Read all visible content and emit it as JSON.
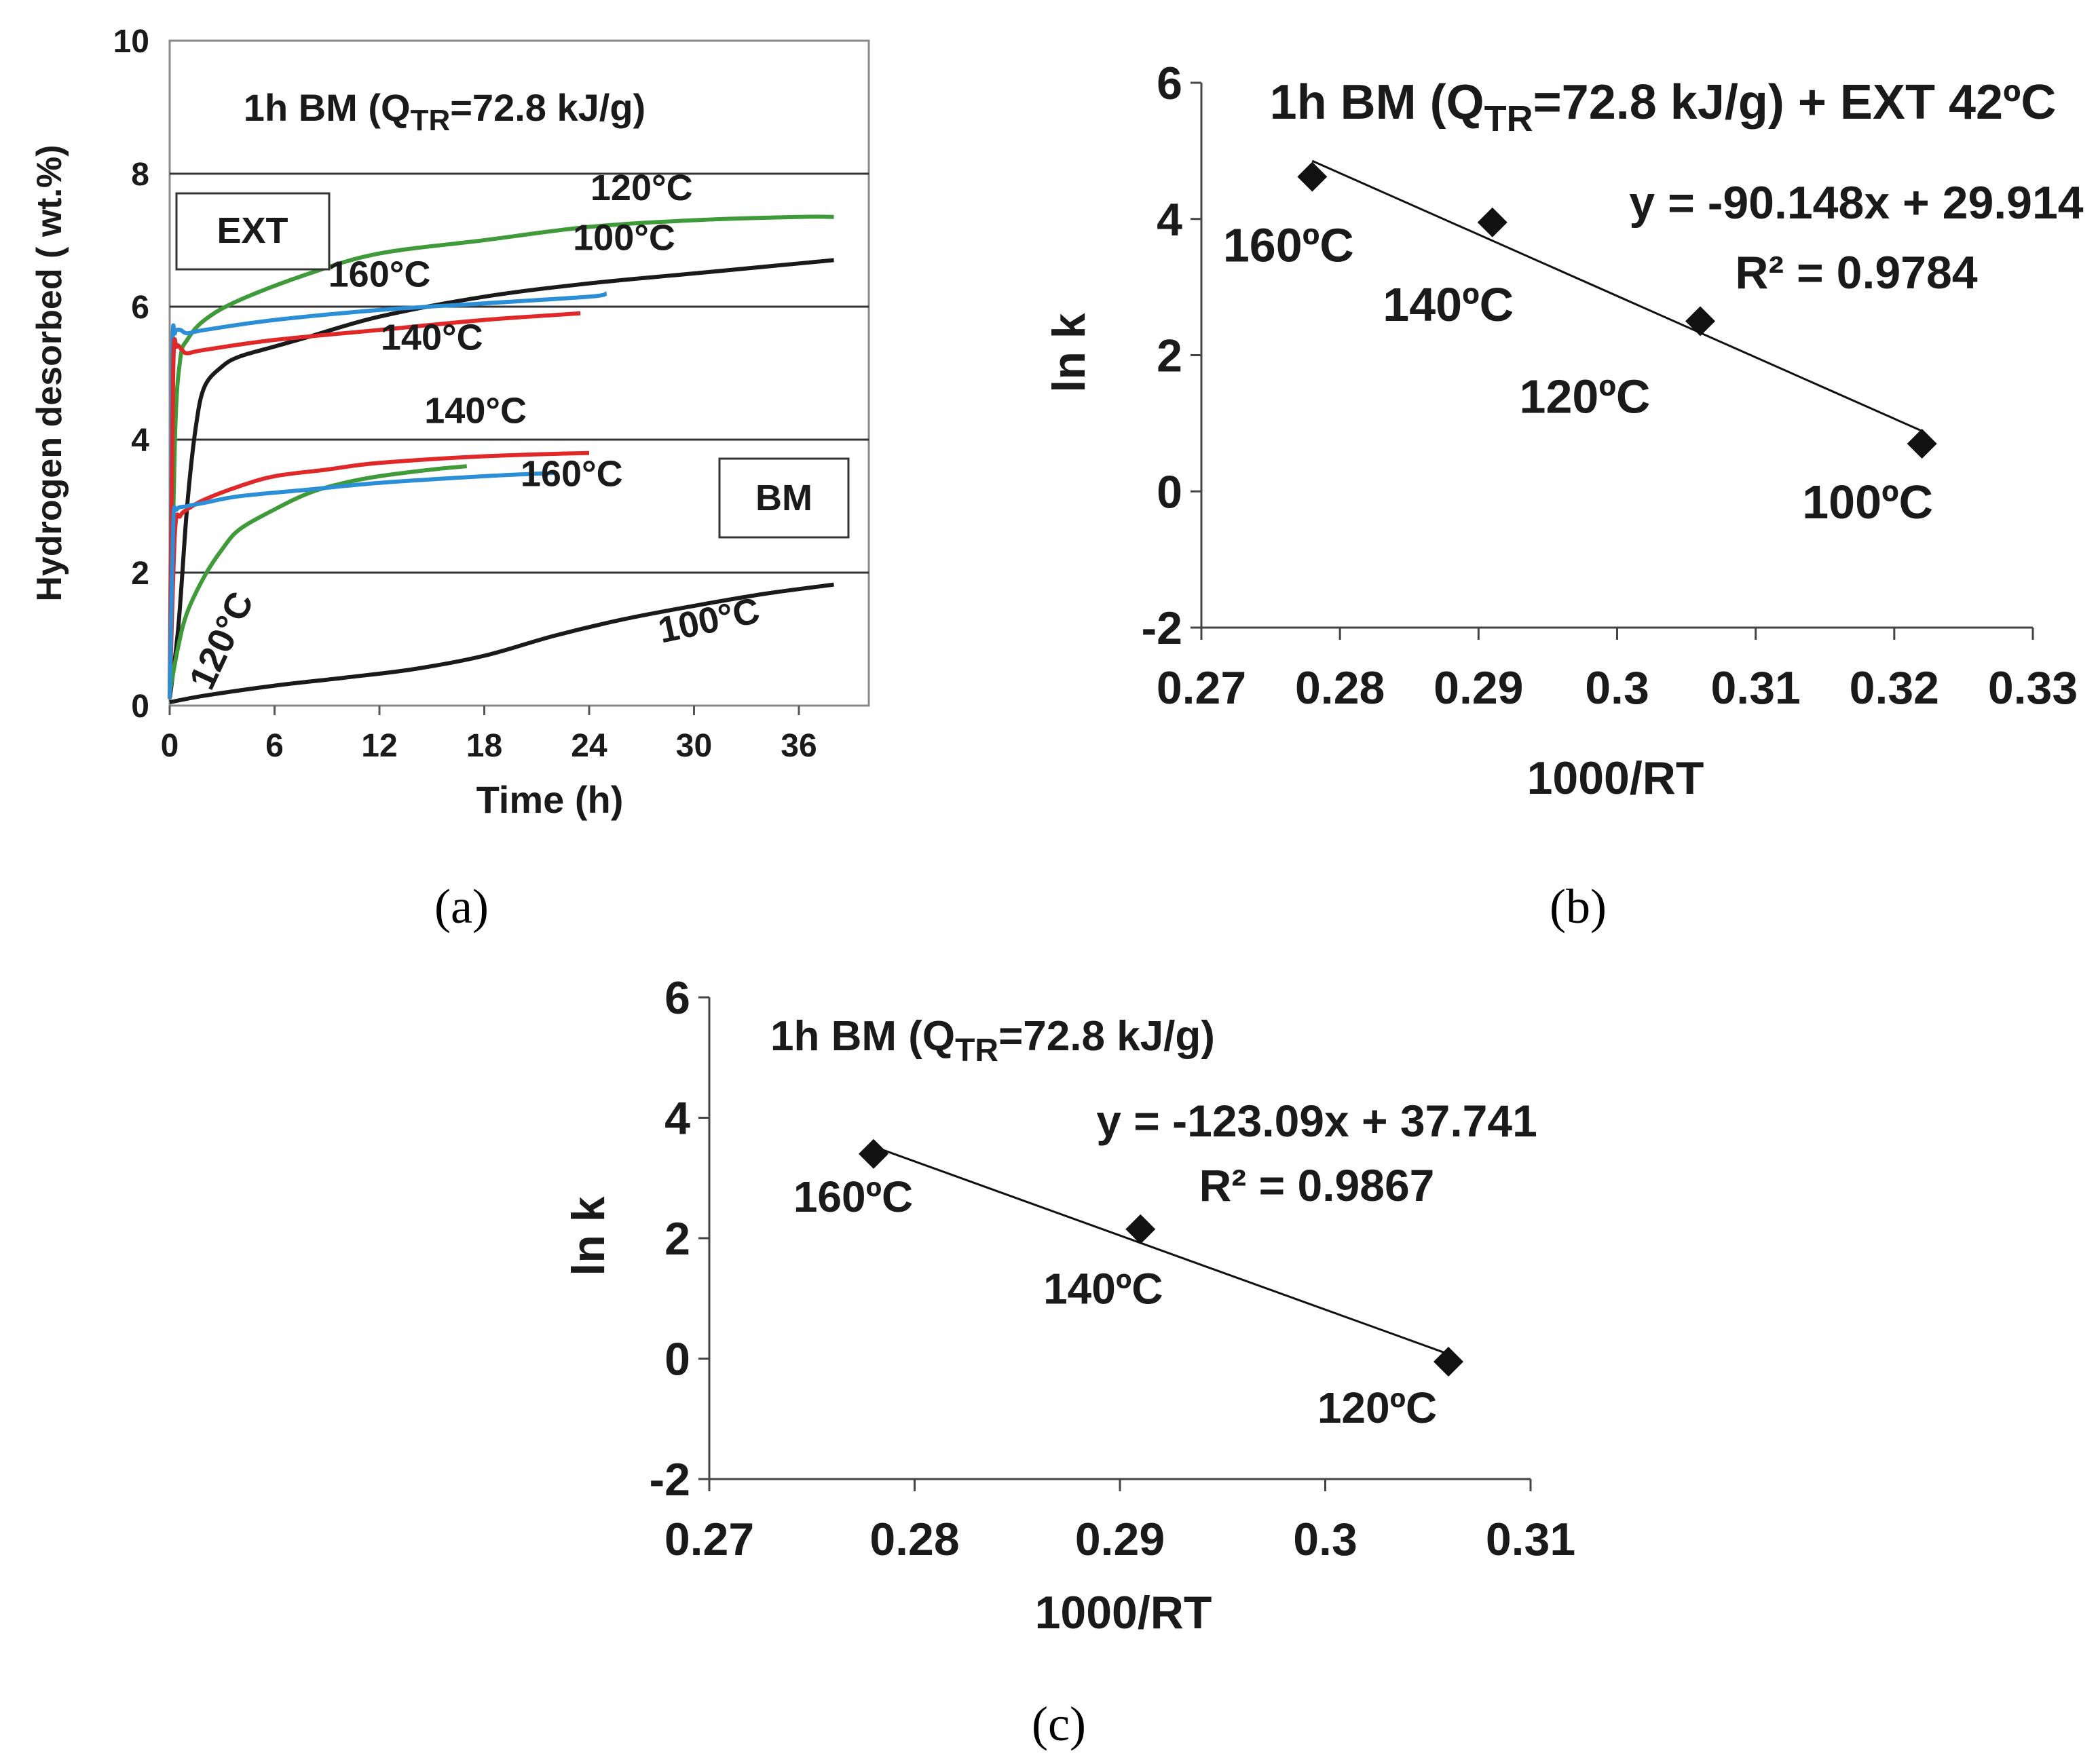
{
  "chart_data": [
    {
      "id": "a",
      "type": "line",
      "panel_label": "(a)",
      "title_parts": [
        "1h BM (Q",
        "TR",
        "=72.8 kJ/g)"
      ],
      "xlabel": "Time  (h)",
      "ylabel": "Hydrogen desorbed ( wt.%)",
      "xlim": [
        0,
        40
      ],
      "ylim": [
        0,
        10
      ],
      "xticks": [
        0,
        6,
        12,
        18,
        24,
        30,
        36
      ],
      "yticks": [
        0,
        2,
        4,
        6,
        8,
        10
      ],
      "grid": "horizontal",
      "box_labels": [
        "EXT",
        "BM"
      ],
      "series": [
        {
          "name": "EXT 120°C",
          "group": "EXT",
          "temp": "120°C",
          "color": "#3f9b3a",
          "x": [
            0,
            0.3,
            0.6,
            1,
            2,
            4,
            8,
            12,
            18,
            24,
            30,
            36,
            38
          ],
          "y": [
            0.1,
            4.0,
            5.2,
            5.5,
            5.8,
            6.1,
            6.5,
            6.8,
            7.0,
            7.2,
            7.3,
            7.35,
            7.35
          ]
        },
        {
          "name": "EXT 100°C",
          "group": "EXT",
          "temp": "100°C",
          "color": "#1a1a1a",
          "x": [
            0,
            0.5,
            1,
            1.5,
            2,
            3,
            4,
            6,
            8,
            12,
            18,
            24,
            30,
            36,
            38
          ],
          "y": [
            0.1,
            1.2,
            3.0,
            4.2,
            4.8,
            5.1,
            5.25,
            5.4,
            5.55,
            5.85,
            6.15,
            6.35,
            6.5,
            6.65,
            6.7
          ]
        },
        {
          "name": "EXT 160°C",
          "group": "EXT",
          "temp": "160°C",
          "color": "#2a8fd6",
          "x": [
            0,
            0.15,
            0.3,
            0.6,
            1,
            2,
            6,
            12,
            18,
            24,
            25
          ],
          "y": [
            0.1,
            5.2,
            5.6,
            5.65,
            5.6,
            5.65,
            5.8,
            5.95,
            6.05,
            6.15,
            6.2
          ]
        },
        {
          "name": "EXT 140°C",
          "group": "EXT",
          "temp": "140°C",
          "color": "#e02828",
          "x": [
            0,
            0.2,
            0.4,
            0.7,
            1,
            2,
            6,
            12,
            18,
            23.5
          ],
          "y": [
            0.1,
            5.0,
            5.4,
            5.35,
            5.3,
            5.35,
            5.5,
            5.65,
            5.8,
            5.9
          ]
        },
        {
          "name": "BM 140°C",
          "group": "BM",
          "temp": "140°C",
          "color": "#e02828",
          "x": [
            0,
            0.3,
            0.6,
            1,
            2,
            4,
            6,
            9,
            12,
            18,
            24
          ],
          "y": [
            0.1,
            2.6,
            2.85,
            2.95,
            3.1,
            3.3,
            3.45,
            3.55,
            3.65,
            3.75,
            3.8
          ]
        },
        {
          "name": "BM 120°C",
          "group": "BM",
          "temp": "120°C",
          "color": "#3f9b3a",
          "x": [
            0,
            0.5,
            1,
            2,
            3,
            4,
            6,
            8,
            10,
            12,
            15,
            17
          ],
          "y": [
            0.2,
            0.9,
            1.4,
            1.95,
            2.35,
            2.65,
            2.95,
            3.2,
            3.35,
            3.45,
            3.55,
            3.6
          ]
        },
        {
          "name": "BM 160°C",
          "group": "BM",
          "temp": "160°C",
          "color": "#2a8fd6",
          "x": [
            0,
            0.2,
            0.4,
            1,
            2,
            4,
            8,
            12,
            18,
            22
          ],
          "y": [
            0.1,
            2.7,
            2.95,
            3.0,
            3.05,
            3.15,
            3.25,
            3.35,
            3.45,
            3.5
          ]
        },
        {
          "name": "BM 100°C",
          "group": "BM",
          "temp": "100°C",
          "color": "#1a1a1a",
          "x": [
            0,
            2,
            6,
            10,
            14,
            18,
            22,
            26,
            30,
            34,
            38
          ],
          "y": [
            0.05,
            0.15,
            0.3,
            0.42,
            0.55,
            0.75,
            1.05,
            1.3,
            1.5,
            1.68,
            1.82
          ]
        }
      ],
      "curve_labels": [
        {
          "text": "120°C",
          "x": 27,
          "y": 7.6
        },
        {
          "text": "100°C",
          "x": 26,
          "y": 6.85
        },
        {
          "text": "160°C",
          "x": 12,
          "y": 6.3
        },
        {
          "text": "140°C",
          "x": 15,
          "y": 5.35
        },
        {
          "text": "140°C",
          "x": 17.5,
          "y": 4.25
        },
        {
          "text": "160°C",
          "x": 23,
          "y": 3.3
        },
        {
          "text": "120°C",
          "x": 3.6,
          "y": 0.9,
          "rotate": -65
        },
        {
          "text": "100°C",
          "x": 31,
          "y": 1.1,
          "rotate": -12
        }
      ]
    },
    {
      "id": "b",
      "type": "scatter",
      "panel_label": "(b)",
      "title_parts": [
        "1h BM (Q",
        "TR",
        "=72.8 kJ/g) + EXT 42ºC"
      ],
      "xlabel": "1000/RT",
      "ylabel": "ln k",
      "xlim": [
        0.27,
        0.33
      ],
      "ylim": [
        -2,
        6
      ],
      "xticks": [
        0.27,
        0.28,
        0.29,
        0.3,
        0.31,
        0.32,
        0.33
      ],
      "ytick_labels": [
        "6",
        "4",
        "2",
        "0",
        "-2"
      ],
      "xtick_labels": [
        "0.27",
        "0.28",
        "0.29",
        "0.3",
        "0.31",
        "0.32",
        "0.33"
      ],
      "points": [
        {
          "x": 0.278,
          "y": 4.62,
          "label": "160ºC"
        },
        {
          "x": 0.291,
          "y": 3.95,
          "label": "140ºC"
        },
        {
          "x": 0.306,
          "y": 2.5,
          "label": "120ºC"
        },
        {
          "x": 0.322,
          "y": 0.7,
          "label": "100ºC"
        }
      ],
      "trendline": {
        "slope": -90.148,
        "intercept": 29.914
      },
      "equation": "y = -90.148x + 29.914",
      "r2": "R² = 0.9784"
    },
    {
      "id": "c",
      "type": "scatter",
      "panel_label": "(c)",
      "title_parts": [
        "1h BM (Q",
        "TR",
        "=72.8 kJ/g)"
      ],
      "xlabel": "1000/RT",
      "ylabel": "ln k",
      "xlim": [
        0.27,
        0.31
      ],
      "ylim": [
        -2,
        6
      ],
      "ytick_labels": [
        "6",
        "4",
        "2",
        "0",
        "-2"
      ],
      "xtick_labels": [
        "0.27",
        "0.28",
        "0.29",
        "0.3",
        "0.31"
      ],
      "points": [
        {
          "x": 0.278,
          "y": 3.4,
          "label": "160ºC"
        },
        {
          "x": 0.291,
          "y": 2.15,
          "label": "140ºC"
        },
        {
          "x": 0.306,
          "y": -0.05,
          "label": "120ºC"
        }
      ],
      "trendline": {
        "slope": -123.09,
        "intercept": 37.741
      },
      "equation": "y = -123.09x + 37.741",
      "r2": "R² = 0.9867"
    }
  ]
}
